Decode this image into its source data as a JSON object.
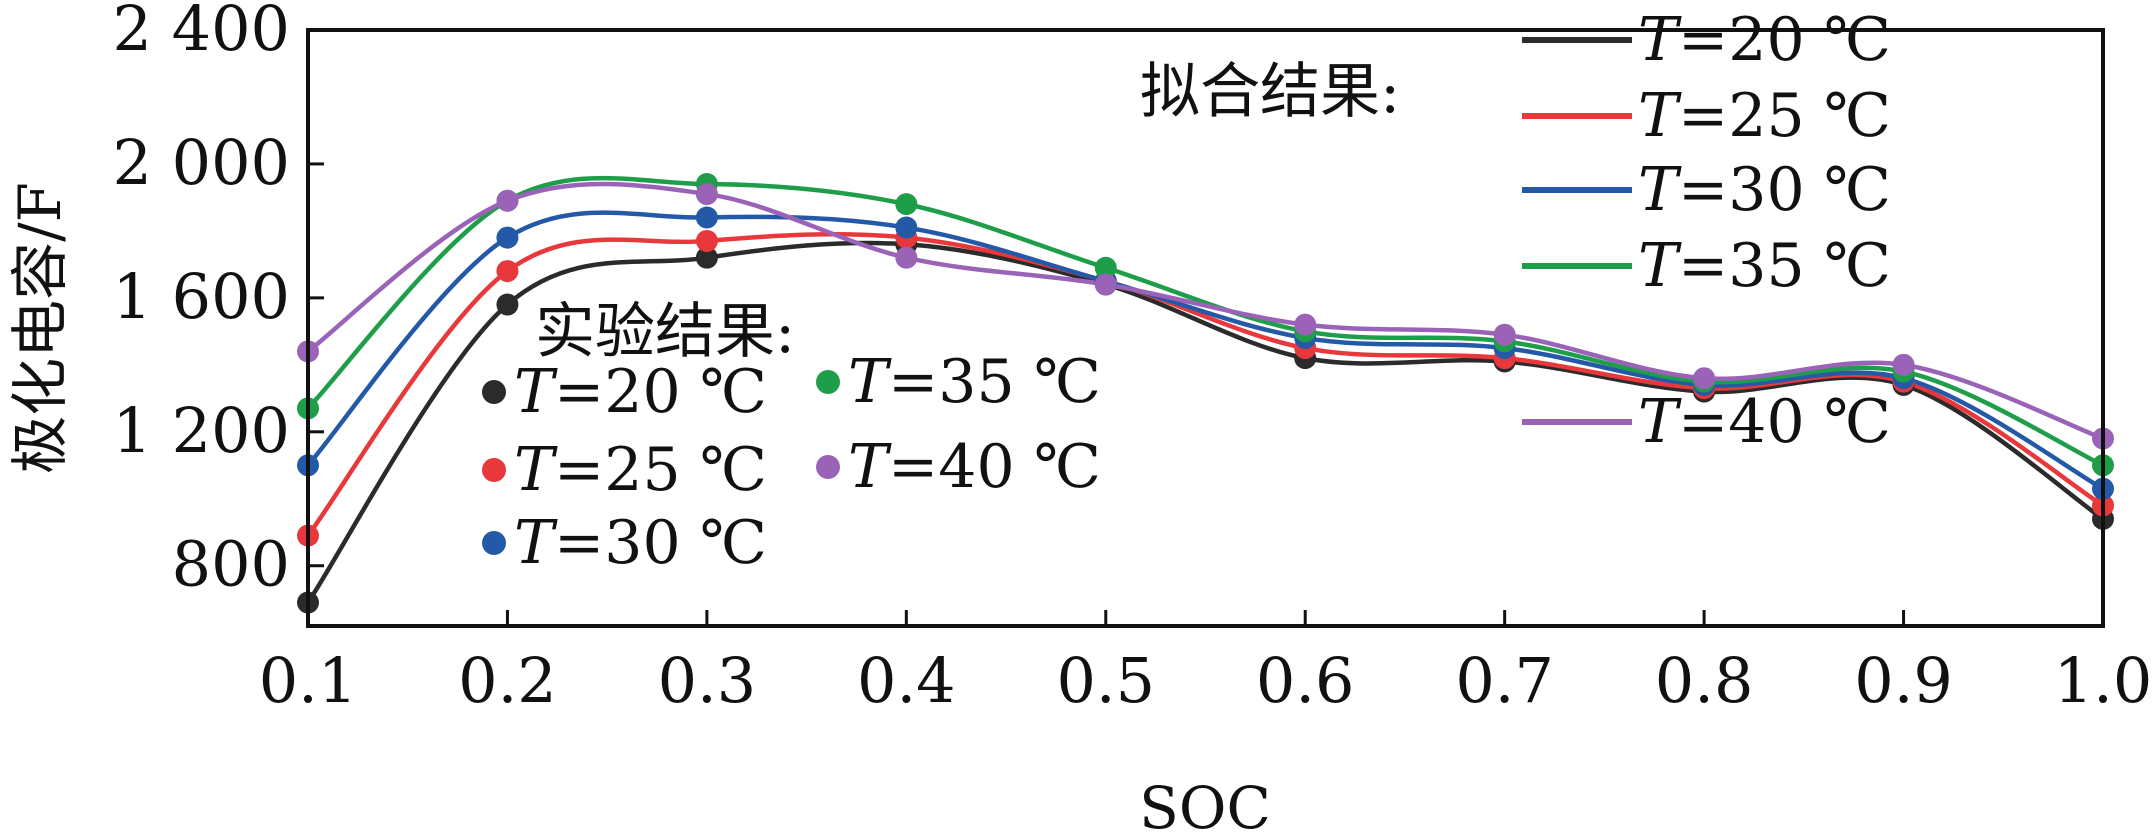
{
  "chart_data": {
    "type": "line",
    "xlabel": "SOC",
    "ylabel": "极化电容/F",
    "xlim": [
      0.1,
      1.0
    ],
    "ylim": [
      620,
      2400
    ],
    "x_ticks": [
      0.1,
      0.2,
      0.3,
      0.4,
      0.5,
      0.6,
      0.7,
      0.8,
      0.9,
      1.0
    ],
    "x_tick_labels": [
      "0.1",
      "0.2",
      "0.3",
      "0.4",
      "0.5",
      "0.6",
      "0.7",
      "0.8",
      "0.9",
      "1.0"
    ],
    "y_ticks": [
      800,
      1200,
      1600,
      2000,
      2400
    ],
    "y_tick_labels": [
      "800",
      "1 200",
      "1 600",
      "2 000",
      "2 400"
    ],
    "grid": false,
    "x": [
      0.1,
      0.2,
      0.3,
      0.4,
      0.5,
      0.6,
      0.7,
      0.8,
      0.9,
      1.0
    ],
    "legend_fit_title": "拟合结果:",
    "legend_exp_title": "实验结果:",
    "legend_fit_placement": "top-right",
    "legend_exp_placement": "left",
    "series": [
      {
        "name": "T=20 ℃",
        "name_var": "T",
        "name_rest": "=20 ℃",
        "color": "#2b2b2b",
        "values": [
          690,
          1580,
          1720,
          1760,
          1640,
          1420,
          1410,
          1320,
          1340,
          940
        ]
      },
      {
        "name": "T=25 ℃",
        "name_var": "T",
        "name_rest": "=25 ℃",
        "color": "#e8383b",
        "values": [
          890,
          1680,
          1770,
          1780,
          1650,
          1450,
          1420,
          1330,
          1350,
          980
        ]
      },
      {
        "name": "T=30 ℃",
        "name_var": "T",
        "name_rest": "=30 ℃",
        "color": "#2459a8",
        "values": [
          1100,
          1780,
          1840,
          1810,
          1650,
          1480,
          1450,
          1340,
          1360,
          1030
        ]
      },
      {
        "name": "T=35 ℃",
        "name_var": "T",
        "name_rest": "=35 ℃",
        "color": "#1f9e4a",
        "values": [
          1270,
          1890,
          1940,
          1880,
          1690,
          1500,
          1470,
          1350,
          1380,
          1100
        ]
      },
      {
        "name": "T=40 ℃",
        "name_var": "T",
        "name_rest": "=40 ℃",
        "color": "#9a63b8",
        "values": [
          1440,
          1890,
          1910,
          1720,
          1640,
          1520,
          1490,
          1360,
          1400,
          1180
        ]
      }
    ]
  }
}
